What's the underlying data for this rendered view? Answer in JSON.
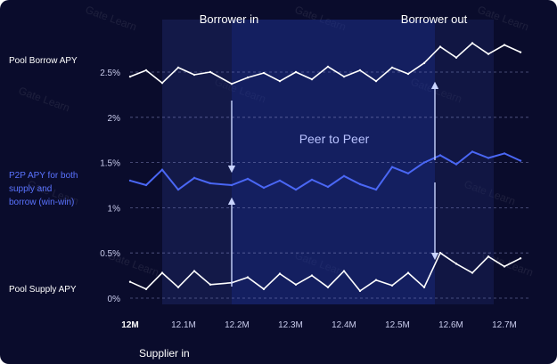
{
  "header": {
    "borrower_in": "Borrower in",
    "borrower_out": "Borrower out"
  },
  "side_labels": {
    "pool_borrow": "Pool Borrow APY",
    "p2p_line1": "P2P APY for both",
    "p2p_line2": "supply and",
    "p2p_line3": "borrow (win-win)",
    "pool_supply": "Pool Supply APY"
  },
  "region_label": "Peer to Peer",
  "watermark_text": "Gate Learn",
  "colors": {
    "background": "#0a0c2c",
    "borrow_line": "#ffffff",
    "p2p_line": "#4a67f5",
    "supply_line": "#ffffff",
    "p2p_region": "#1e2f8c",
    "arrows": "#c9d4ff"
  },
  "chart_data": {
    "type": "line",
    "title": "",
    "xlabel": "Supplier in",
    "ylabel": "",
    "xlim": [
      12.0,
      12.75
    ],
    "ylim": [
      0,
      2.7
    ],
    "x_tick_labels": [
      "12M",
      "12.1M",
      "12.2M",
      "12.3M",
      "12.4M",
      "12.5M",
      "12.6M",
      "12.7M"
    ],
    "x_ticks": [
      12.0,
      12.1,
      12.2,
      12.3,
      12.4,
      12.5,
      12.6,
      12.7
    ],
    "y_tick_labels": [
      "0%",
      "0.5%",
      "1%",
      "1.5%",
      "2%",
      "2.5%"
    ],
    "y_ticks": [
      0,
      0.5,
      1,
      1.5,
      2,
      2.5
    ],
    "grid": "horizontal dashed",
    "events": [
      {
        "label": "Borrower in",
        "x": 12.19
      },
      {
        "label": "Borrower out",
        "x": 12.57
      }
    ],
    "regions": [
      {
        "name": "Peer to Peer",
        "x_start": 12.19,
        "x_end": 12.57
      }
    ],
    "series": [
      {
        "name": "Pool Borrow APY",
        "x": [
          12.0,
          12.03,
          12.06,
          12.09,
          12.12,
          12.15,
          12.19,
          12.22,
          12.25,
          12.28,
          12.31,
          12.34,
          12.37,
          12.4,
          12.43,
          12.46,
          12.49,
          12.52,
          12.55,
          12.58,
          12.61,
          12.64,
          12.67,
          12.7,
          12.73
        ],
        "y": [
          2.45,
          2.52,
          2.38,
          2.55,
          2.47,
          2.5,
          2.37,
          2.44,
          2.49,
          2.4,
          2.5,
          2.42,
          2.56,
          2.45,
          2.52,
          2.4,
          2.55,
          2.48,
          2.6,
          2.78,
          2.66,
          2.82,
          2.7,
          2.8,
          2.72
        ]
      },
      {
        "name": "P2P APY for both supply and borrow (win-win)",
        "x": [
          12.0,
          12.03,
          12.06,
          12.09,
          12.12,
          12.15,
          12.19,
          12.22,
          12.25,
          12.28,
          12.31,
          12.34,
          12.37,
          12.4,
          12.43,
          12.46,
          12.49,
          12.52,
          12.55,
          12.58,
          12.61,
          12.64,
          12.67,
          12.7,
          12.73
        ],
        "y": [
          1.3,
          1.25,
          1.42,
          1.2,
          1.33,
          1.27,
          1.25,
          1.32,
          1.22,
          1.3,
          1.2,
          1.31,
          1.23,
          1.35,
          1.26,
          1.2,
          1.45,
          1.38,
          1.5,
          1.58,
          1.48,
          1.62,
          1.55,
          1.6,
          1.52
        ]
      },
      {
        "name": "Pool Supply APY",
        "x": [
          12.0,
          12.03,
          12.06,
          12.09,
          12.12,
          12.15,
          12.19,
          12.22,
          12.25,
          12.28,
          12.31,
          12.34,
          12.37,
          12.4,
          12.43,
          12.46,
          12.49,
          12.52,
          12.55,
          12.58,
          12.61,
          12.64,
          12.67,
          12.7,
          12.73
        ],
        "y": [
          0.18,
          0.1,
          0.28,
          0.12,
          0.3,
          0.15,
          0.17,
          0.23,
          0.1,
          0.27,
          0.15,
          0.25,
          0.12,
          0.3,
          0.08,
          0.2,
          0.14,
          0.28,
          0.12,
          0.5,
          0.38,
          0.28,
          0.46,
          0.35,
          0.44
        ]
      }
    ]
  }
}
